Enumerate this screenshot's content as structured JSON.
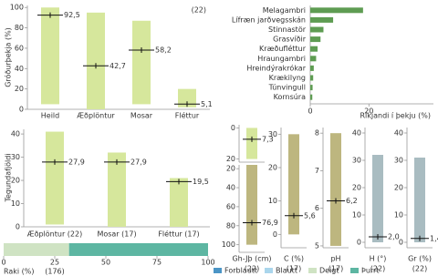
{
  "chart_data": [
    {
      "type": "range",
      "ylabel": "Gróðurþekja (%)",
      "annotation": "(22)",
      "color": "#d6e79c",
      "categories": [
        "Heild",
        "Æðplöntur",
        "Mosar",
        "Fléttur"
      ],
      "ranges": [
        [
          5,
          100
        ],
        [
          0,
          95
        ],
        [
          5,
          87
        ],
        [
          2,
          20
        ]
      ],
      "values": [
        92.5,
        42.7,
        58.2,
        5.1
      ],
      "value_labels": [
        "92,5",
        "42,7",
        "58,2",
        "5,1"
      ],
      "ylim": [
        0,
        102
      ],
      "yticks": [
        0,
        20,
        40,
        60,
        80,
        100
      ]
    },
    {
      "type": "hbar",
      "xlabel": "Ríkjandi í þekju (%)",
      "color": "#5e9c52",
      "categories": [
        "Melagambri",
        "Lífræn jarðvegsskán",
        "Stinnastör",
        "Grasvíðir",
        "Kræðufléttur",
        "Hraungambri",
        "Hreindýrakrókar",
        "Krækilyng",
        "Túnvingull",
        "Kornsúra"
      ],
      "values": [
        18,
        7.8,
        4.5,
        3.5,
        2.5,
        2,
        1.2,
        1,
        0.8,
        0.7
      ],
      "xlim": [
        0,
        42
      ],
      "xticks": [
        0,
        20
      ]
    },
    {
      "type": "range",
      "ylabel": "Tegundafjöldi",
      "color": "#d6e79c",
      "categories": [
        "Æðplöntur (22)",
        "Mosar (17)",
        "Fléttur (17)"
      ],
      "ranges": [
        [
          1,
          41
        ],
        [
          0,
          32
        ],
        [
          0,
          21
        ]
      ],
      "values": [
        27.9,
        27.9,
        19.5
      ],
      "value_labels": [
        "27,9",
        "27,9",
        "19,5"
      ],
      "ylim": [
        0,
        42
      ],
      "yticks": [
        0,
        10,
        20,
        30,
        40
      ]
    },
    {
      "type": "stacked",
      "ylabel": "Raki (%)",
      "annotation": "(176)",
      "series": [
        {
          "name": "Forblautt",
          "color": "#4b95c6",
          "values": [
            0
          ]
        },
        {
          "name": "Blautt",
          "color": "#aad6ec",
          "values": [
            0
          ]
        },
        {
          "name": "Deigt",
          "color": "#cfe3c3",
          "values": [
            32
          ]
        },
        {
          "name": "Þurrt",
          "color": "#5db6a2",
          "values": [
            68
          ]
        }
      ],
      "xlim": [
        0,
        100
      ],
      "xticks": [
        0,
        25,
        50,
        75,
        100
      ]
    },
    {
      "type": "range",
      "color": "#d6e79c",
      "ranges": [
        [
          0,
          20
        ]
      ],
      "values": [
        7.3
      ],
      "value_labels": [
        "7,3"
      ],
      "ylim": [
        22,
        -2
      ],
      "yticks": [
        0,
        20
      ]
    },
    {
      "type": "range",
      "xlabel": "Gh-Jþ (cm)",
      "annotation": "(22)",
      "color": "#bdb67f",
      "ranges": [
        [
          16,
          100
        ]
      ],
      "values": [
        76.9
      ],
      "value_labels": [
        "76,9"
      ],
      "ylim": [
        108,
        16
      ],
      "yticks": [
        20,
        40,
        60,
        80,
        100
      ]
    },
    {
      "type": "range",
      "xlabel": "C (%)",
      "annotation": "(17)",
      "color": "#bdb67f",
      "ranges": [
        [
          0,
          30
        ]
      ],
      "values": [
        5.6
      ],
      "value_labels": [
        "5,6"
      ],
      "ylim": [
        -4,
        32
      ],
      "yticks": [
        0,
        10,
        20,
        30
      ]
    },
    {
      "type": "range",
      "xlabel": "pH",
      "annotation": "(17)",
      "color": "#bdb67f",
      "ranges": [
        [
          5,
          8
        ]
      ],
      "values": [
        6.2
      ],
      "value_labels": [
        "6,2"
      ],
      "ylim": [
        4.95,
        8.15
      ],
      "yticks": [
        5,
        6,
        7,
        8
      ]
    },
    {
      "type": "range",
      "xlabel": "H (°)",
      "annotation": "(22)",
      "color": "#a9bcc1",
      "ranges": [
        [
          0,
          32
        ]
      ],
      "values": [
        2.0
      ],
      "value_labels": [
        "2,0"
      ],
      "ylim": [
        -2,
        42
      ],
      "yticks": [
        0,
        10,
        20,
        30,
        40
      ]
    },
    {
      "type": "range",
      "xlabel": "Gr (%)",
      "annotation": "(22)",
      "color": "#a9bcc1",
      "ranges": [
        [
          0,
          31
        ]
      ],
      "values": [
        1.4
      ],
      "value_labels": [
        "1,4"
      ],
      "ylim": [
        -2,
        42
      ],
      "yticks": [
        0,
        10,
        20,
        30,
        40
      ]
    }
  ]
}
